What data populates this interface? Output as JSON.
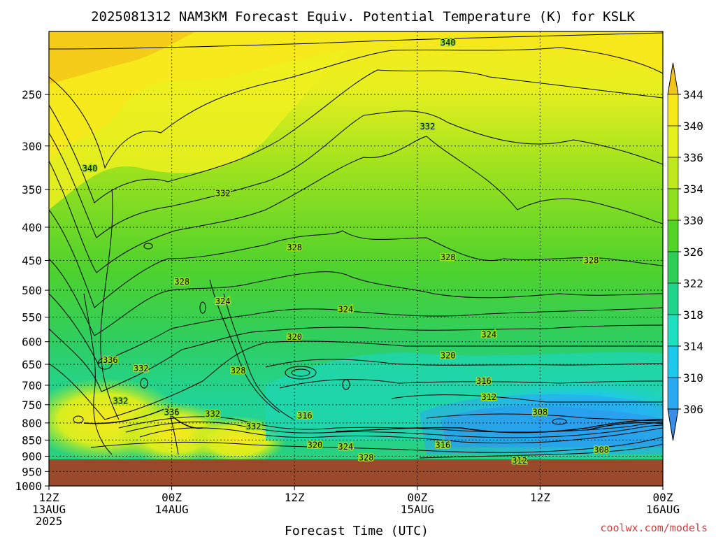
{
  "chart_data": {
    "type": "heatmap",
    "title": "2025081312 NAM3KM Forecast Equiv. Potential Temperature (K) for KSLK",
    "xlabel": "Forecast Time (UTC)",
    "ylabel": "",
    "credit": "coolwx.com/models",
    "y_axis": {
      "scale": "log",
      "ylim": [
        1000,
        200
      ],
      "ticks": [
        250,
        300,
        350,
        400,
        450,
        500,
        550,
        600,
        650,
        700,
        750,
        800,
        850,
        900,
        950,
        1000
      ],
      "tick_labels": [
        "250",
        "300",
        "350",
        "400",
        "450",
        "500",
        "550",
        "600",
        "650",
        "700",
        "750",
        "800",
        "850",
        "900",
        "950",
        "1000"
      ]
    },
    "x_axis": {
      "xlim": [
        "2025-08-13T12:00Z",
        "2025-08-16T00:00Z"
      ],
      "ticks": [
        "2025-08-13T12:00Z",
        "2025-08-14T00:00Z",
        "2025-08-14T12:00Z",
        "2025-08-15T00:00Z",
        "2025-08-15T12:00Z",
        "2025-08-16T00:00Z"
      ],
      "tick_labels": [
        {
          "line1": "12Z",
          "line2": "13AUG",
          "line3": "2025"
        },
        {
          "line1": "00Z",
          "line2": "14AUG",
          "line3": ""
        },
        {
          "line1": "12Z",
          "line2": "",
          "line3": ""
        },
        {
          "line1": "00Z",
          "line2": "15AUG",
          "line3": ""
        },
        {
          "line1": "12Z",
          "line2": "",
          "line3": ""
        },
        {
          "line1": "00Z",
          "line2": "16AUG",
          "line3": ""
        }
      ]
    },
    "grid": true,
    "legend": "right",
    "colorbar": {
      "labels": [
        "344",
        "340",
        "336",
        "334",
        "330",
        "326",
        "322",
        "318",
        "314",
        "310",
        "306"
      ],
      "colors": [
        "#f2c419",
        "#f7e81c",
        "#e6f01f",
        "#bfe81e",
        "#8ee01e",
        "#55d428",
        "#2ece55",
        "#21d48b",
        "#1ee0c0",
        "#1ec8ec",
        "#2aa8f0",
        "#3a8ee8"
      ],
      "extend": "both"
    },
    "contour_labels": [
      {
        "value": "340",
        "time": "2025-08-15T03:00Z",
        "pressure": 208
      },
      {
        "value": "340",
        "time": "2025-08-13T16:00Z",
        "pressure": 325
      },
      {
        "value": "332",
        "time": "2025-08-14T05:00Z",
        "pressure": 355
      },
      {
        "value": "332",
        "time": "2025-08-15T01:00Z",
        "pressure": 280
      },
      {
        "value": "328",
        "time": "2025-08-14T01:00Z",
        "pressure": 485
      },
      {
        "value": "328",
        "time": "2025-08-14T12:00Z",
        "pressure": 430
      },
      {
        "value": "328",
        "time": "2025-08-15T03:00Z",
        "pressure": 445
      },
      {
        "value": "328",
        "time": "2025-08-15T17:00Z",
        "pressure": 450
      },
      {
        "value": "328",
        "time": "2025-08-14T06:30Z",
        "pressure": 665
      },
      {
        "value": "328",
        "time": "2025-08-14T19:00Z",
        "pressure": 905
      },
      {
        "value": "324",
        "time": "2025-08-14T05:00Z",
        "pressure": 520
      },
      {
        "value": "324",
        "time": "2025-08-14T17:00Z",
        "pressure": 535
      },
      {
        "value": "324",
        "time": "2025-08-15T07:00Z",
        "pressure": 585
      },
      {
        "value": "324",
        "time": "2025-08-14T17:00Z",
        "pressure": 870
      },
      {
        "value": "320",
        "time": "2025-08-14T12:00Z",
        "pressure": 590
      },
      {
        "value": "320",
        "time": "2025-08-15T03:00Z",
        "pressure": 630
      },
      {
        "value": "320",
        "time": "2025-08-14T14:00Z",
        "pressure": 865
      },
      {
        "value": "316",
        "time": "2025-08-15T06:30Z",
        "pressure": 690
      },
      {
        "value": "316",
        "time": "2025-08-14T13:00Z",
        "pressure": 780
      },
      {
        "value": "316",
        "time": "2025-08-15T02:30Z",
        "pressure": 865
      },
      {
        "value": "312",
        "time": "2025-08-15T07:00Z",
        "pressure": 730
      },
      {
        "value": "312",
        "time": "2025-08-15T10:00Z",
        "pressure": 915
      },
      {
        "value": "308",
        "time": "2025-08-15T12:00Z",
        "pressure": 770
      },
      {
        "value": "308",
        "time": "2025-08-15T18:00Z",
        "pressure": 880
      },
      {
        "value": "336",
        "time": "2025-08-13T18:00Z",
        "pressure": 640
      },
      {
        "value": "336",
        "time": "2025-08-14T00:00Z",
        "pressure": 770
      },
      {
        "value": "332",
        "time": "2025-08-13T21:00Z",
        "pressure": 660
      },
      {
        "value": "332",
        "time": "2025-08-13T19:00Z",
        "pressure": 740
      },
      {
        "value": "332",
        "time": "2025-08-14T04:00Z",
        "pressure": 775
      },
      {
        "value": "332",
        "time": "2025-08-14T08:00Z",
        "pressure": 810
      }
    ]
  }
}
